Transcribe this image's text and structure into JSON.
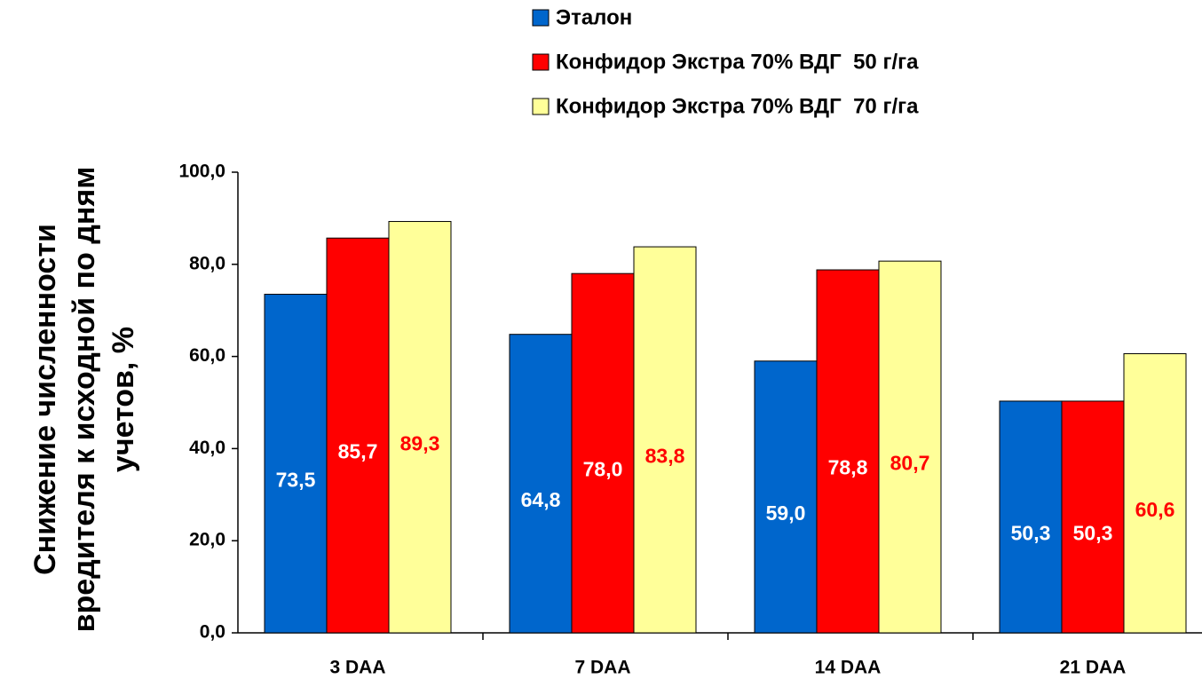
{
  "chart_data": {
    "type": "bar",
    "y_label": "Снижение численности вредителя к исходной по дням учетов, %",
    "categories": [
      "3 DAA",
      "7 DAA",
      "14 DAA",
      "21 DAA"
    ],
    "series": [
      {
        "name": "Эталон",
        "color": "#0066cc",
        "label_color": "#ffffff",
        "values": [
          73.5,
          64.8,
          59.0,
          50.3
        ],
        "value_labels": [
          "73,5",
          "64,8",
          "59,0",
          "50,3"
        ]
      },
      {
        "name": "Конфидор Экстра 70% ВДГ  50 г/га",
        "color": "#ff0000",
        "label_color": "#ffffff",
        "values": [
          85.7,
          78.0,
          78.8,
          50.3
        ],
        "value_labels": [
          "85,7",
          "78,0",
          "78,8",
          "50,3"
        ]
      },
      {
        "name": "Конфидор Экстра 70% ВДГ  70 г/га",
        "color": "#ffff99",
        "label_color": "#ff0000",
        "values": [
          89.3,
          83.8,
          80.7,
          60.6
        ],
        "value_labels": [
          "89,3",
          "83,8",
          "80,7",
          "60,6"
        ]
      }
    ],
    "ylim": [
      0,
      100
    ],
    "yticks": [
      {
        "value": 0,
        "label": "0,0"
      },
      {
        "value": 20,
        "label": "20,0"
      },
      {
        "value": 40,
        "label": "40,0"
      },
      {
        "value": 60,
        "label": "60,0"
      },
      {
        "value": 80,
        "label": "80,0"
      },
      {
        "value": 100,
        "label": "100,0"
      }
    ],
    "legend": "top"
  }
}
